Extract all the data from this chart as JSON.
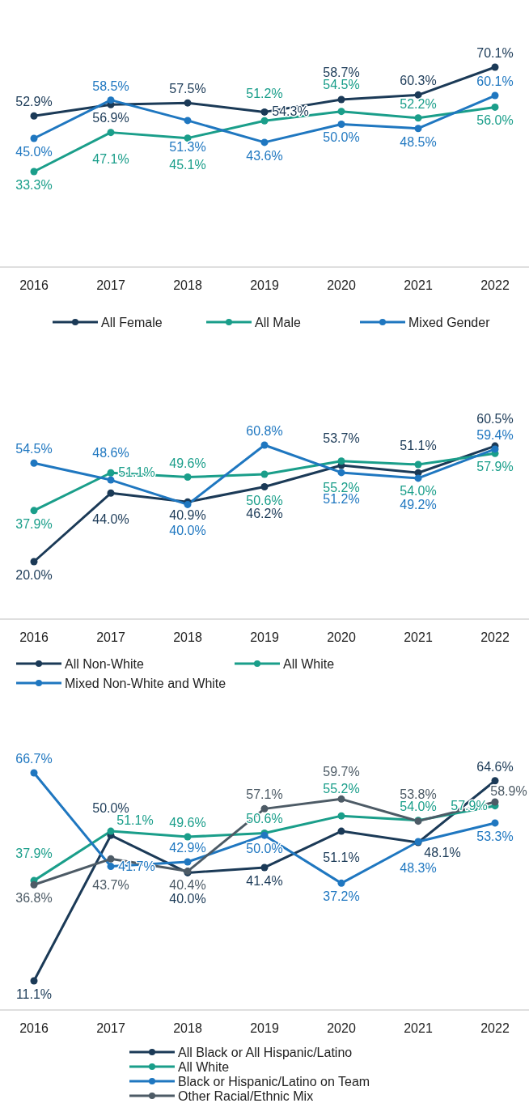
{
  "chart_data": [
    {
      "type": "line",
      "categories": [
        "2016",
        "2017",
        "2018",
        "2019",
        "2020",
        "2021",
        "2022"
      ],
      "legend": "bottom",
      "marker": "circle",
      "series": [
        {
          "name": "All Female",
          "color": "#1b3a57",
          "values": [
            52.9,
            56.9,
            57.5,
            54.3,
            58.7,
            60.3,
            70.1
          ],
          "value_labels": [
            "52.9%",
            "56.9%",
            "57.5%",
            "54.3%",
            "58.7%",
            "60.3%",
            "70.1%"
          ]
        },
        {
          "name": "All Male",
          "color": "#1a9e8a",
          "values": [
            33.3,
            47.1,
            45.1,
            51.2,
            54.5,
            52.2,
            56.0
          ],
          "value_labels": [
            "33.3%",
            "47.1%",
            "45.1%",
            "51.2%",
            "54.5%",
            "52.2%",
            "56.0%"
          ]
        },
        {
          "name": "Mixed Gender",
          "color": "#1f77c0",
          "values": [
            45.0,
            58.5,
            51.3,
            43.6,
            50.0,
            48.5,
            60.1
          ],
          "value_labels": [
            "45.0%",
            "58.5%",
            "51.3%",
            "43.6%",
            "50.0%",
            "48.5%",
            "60.1%"
          ]
        }
      ]
    },
    {
      "type": "line",
      "categories": [
        "2016",
        "2017",
        "2018",
        "2019",
        "2020",
        "2021",
        "2022"
      ],
      "legend": "bottom",
      "marker": "circle",
      "series": [
        {
          "name": "All Non-White",
          "color": "#1b3a57",
          "values": [
            20.0,
            44.0,
            40.9,
            46.2,
            53.7,
            51.1,
            60.5
          ],
          "value_labels": [
            "20.0%",
            "44.0%",
            "40.9%",
            "46.2%",
            "53.7%",
            "51.1%",
            "60.5%"
          ]
        },
        {
          "name": "All White",
          "color": "#1a9e8a",
          "values": [
            37.9,
            51.1,
            49.6,
            50.6,
            55.2,
            54.0,
            57.9
          ],
          "value_labels": [
            "37.9%",
            "51.1%",
            "49.6%",
            "50.6%",
            "55.2%",
            "54.0%",
            "57.9%"
          ]
        },
        {
          "name": "Mixed Non-White and White",
          "color": "#1f77c0",
          "values": [
            54.5,
            48.6,
            40.0,
            60.8,
            51.2,
            49.2,
            59.4
          ],
          "value_labels": [
            "54.5%",
            "48.6%",
            "40.0%",
            "60.8%",
            "51.2%",
            "49.2%",
            "59.4%"
          ]
        }
      ]
    },
    {
      "type": "line",
      "categories": [
        "2016",
        "2017",
        "2018",
        "2019",
        "2020",
        "2021",
        "2022"
      ],
      "legend": "bottom",
      "marker": "circle",
      "series": [
        {
          "name": "All Black or All Hispanic/Latino",
          "color": "#1b3a57",
          "values": [
            11.1,
            50.0,
            40.0,
            41.4,
            51.1,
            48.1,
            64.6
          ],
          "value_labels": [
            "11.1%",
            "50.0%",
            "40.0%",
            "41.4%",
            "51.1%",
            "48.1%",
            "64.6%"
          ]
        },
        {
          "name": "All White",
          "color": "#1a9e8a",
          "values": [
            37.9,
            51.1,
            49.6,
            50.6,
            55.2,
            54.0,
            57.9
          ],
          "value_labels": [
            "37.9%",
            "51.1%",
            "49.6%",
            "50.6%",
            "55.2%",
            "54.0%",
            "57.9%"
          ]
        },
        {
          "name": "Black or Hispanic/Latino on Team",
          "color": "#1f77c0",
          "values": [
            66.7,
            41.7,
            42.9,
            50.0,
            37.2,
            48.3,
            53.3
          ],
          "value_labels": [
            "66.7%",
            "41.7%",
            "42.9%",
            "50.0%",
            "37.2%",
            "48.3%",
            "53.3%"
          ]
        },
        {
          "name": "Other Racial/Ethnic Mix",
          "color": "#4d5b66",
          "values": [
            36.8,
            43.7,
            40.4,
            57.1,
            59.7,
            53.8,
            58.9
          ],
          "value_labels": [
            "36.8%",
            "43.7%",
            "40.4%",
            "57.1%",
            "59.7%",
            "53.8%",
            "58.9%"
          ]
        }
      ]
    }
  ]
}
